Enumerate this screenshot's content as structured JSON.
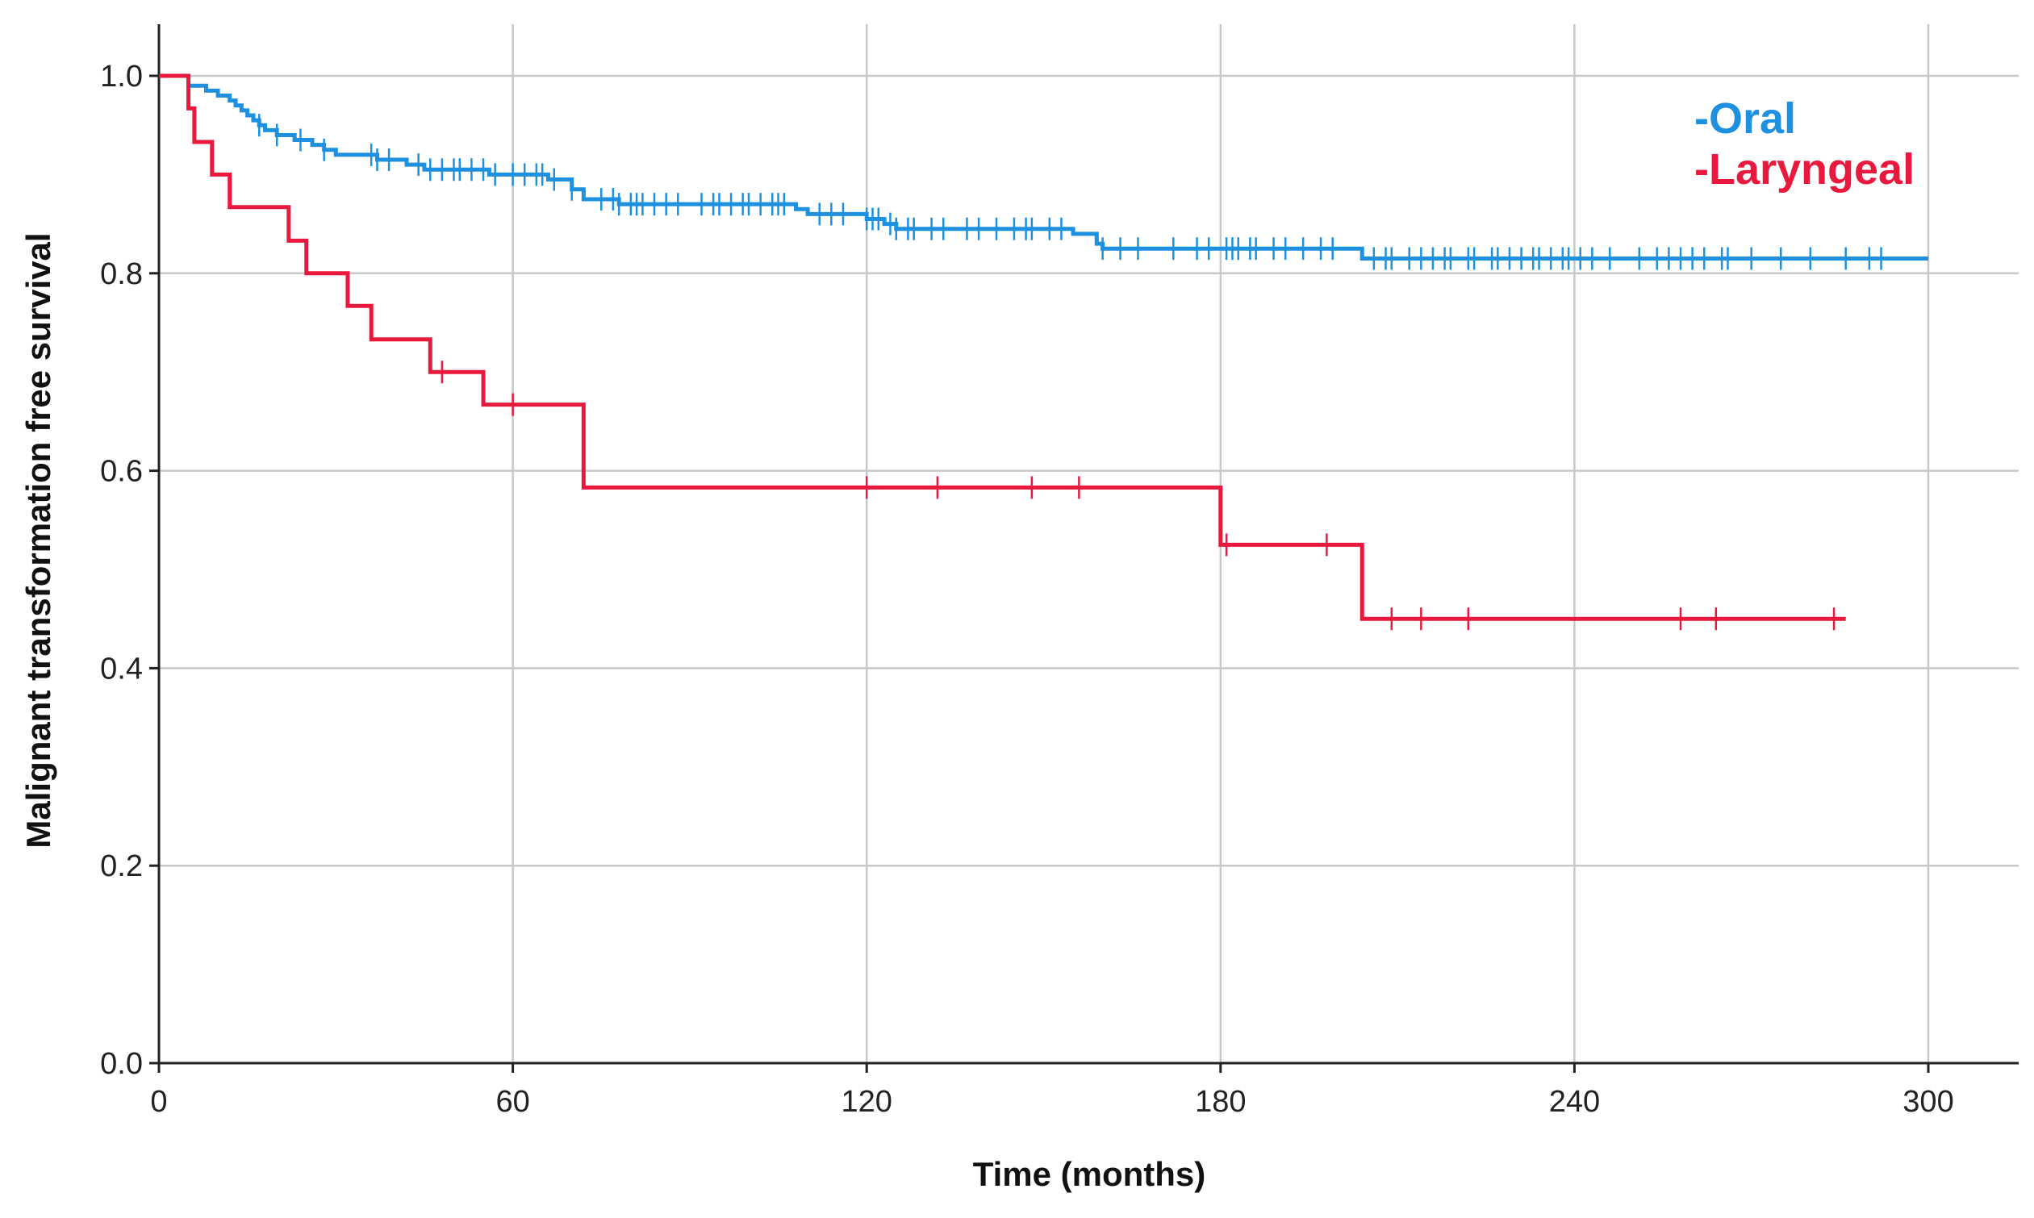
{
  "chart_data": {
    "type": "line",
    "subtype": "kaplan-meier step",
    "title": "",
    "xlabel": "Time (months)",
    "ylabel": "Malignant transformation free survival",
    "xlim": [
      0,
      315
    ],
    "ylim": [
      0,
      1.0
    ],
    "x_ticks": [
      0,
      60,
      120,
      180,
      240,
      300
    ],
    "y_ticks": [
      0.0,
      0.2,
      0.4,
      0.6,
      0.8,
      1.0
    ],
    "x_tick_labels": [
      "0",
      "60",
      "120",
      "180",
      "240",
      "300"
    ],
    "y_tick_labels": [
      "0.0",
      "0.2",
      "0.4",
      "0.6",
      "0.8",
      "1.0"
    ],
    "grid": true,
    "legend_position": "top-right",
    "series": [
      {
        "name": "-Oral",
        "color": "#1e90e0",
        "start": [
          0,
          1.0
        ],
        "end_x": 300,
        "steps": [
          [
            5,
            0.99
          ],
          [
            8,
            0.985
          ],
          [
            10,
            0.98
          ],
          [
            12,
            0.975
          ],
          [
            13,
            0.97
          ],
          [
            14,
            0.965
          ],
          [
            15,
            0.96
          ],
          [
            16,
            0.955
          ],
          [
            17,
            0.95
          ],
          [
            18,
            0.945
          ],
          [
            20,
            0.94
          ],
          [
            23,
            0.935
          ],
          [
            26,
            0.93
          ],
          [
            28,
            0.925
          ],
          [
            30,
            0.92
          ],
          [
            37,
            0.915
          ],
          [
            42,
            0.91
          ],
          [
            45,
            0.905
          ],
          [
            56,
            0.9
          ],
          [
            66,
            0.895
          ],
          [
            70,
            0.885
          ],
          [
            72,
            0.875
          ],
          [
            78,
            0.87
          ],
          [
            108,
            0.865
          ],
          [
            110,
            0.86
          ],
          [
            120,
            0.855
          ],
          [
            123,
            0.85
          ],
          [
            125,
            0.845
          ],
          [
            155,
            0.84
          ],
          [
            159,
            0.83
          ],
          [
            160,
            0.825
          ],
          [
            204,
            0.815
          ]
        ],
        "censored": [
          17,
          20,
          24,
          28,
          36,
          37,
          39,
          44,
          46,
          48,
          50,
          51,
          53,
          55,
          57,
          60,
          62,
          64,
          65,
          67,
          70,
          75,
          77,
          78,
          80,
          81,
          82,
          84,
          86,
          88,
          92,
          94,
          95,
          97,
          99,
          100,
          102,
          104,
          105,
          106,
          112,
          114,
          116,
          120,
          121,
          122,
          124,
          125,
          127,
          128,
          131,
          133,
          137,
          139,
          142,
          145,
          147,
          148,
          151,
          153,
          160,
          163,
          166,
          172,
          176,
          178,
          181,
          182,
          183,
          185,
          186,
          189,
          191,
          194,
          197,
          199,
          206,
          208,
          209,
          212,
          214,
          216,
          218,
          219,
          222,
          223,
          226,
          227,
          229,
          231,
          233,
          234,
          236,
          238,
          239,
          241,
          243,
          246,
          251,
          254,
          256,
          258,
          260,
          262,
          265,
          266,
          270,
          275,
          280,
          286,
          290,
          292
        ]
      },
      {
        "name": "-Laryngeal",
        "color": "#e8193c",
        "start": [
          0,
          1.0
        ],
        "end_x": 286,
        "steps": [
          [
            5,
            0.967
          ],
          [
            6,
            0.933
          ],
          [
            9,
            0.9
          ],
          [
            12,
            0.867
          ],
          [
            22,
            0.833
          ],
          [
            25,
            0.8
          ],
          [
            32,
            0.767
          ],
          [
            36,
            0.733
          ],
          [
            46,
            0.7
          ],
          [
            55,
            0.667
          ],
          [
            72,
            0.583
          ],
          [
            180,
            0.525
          ],
          [
            204,
            0.45
          ]
        ],
        "censored": [
          48,
          60,
          120,
          132,
          148,
          156,
          181,
          198,
          209,
          214,
          222,
          258,
          264,
          284
        ]
      }
    ]
  }
}
